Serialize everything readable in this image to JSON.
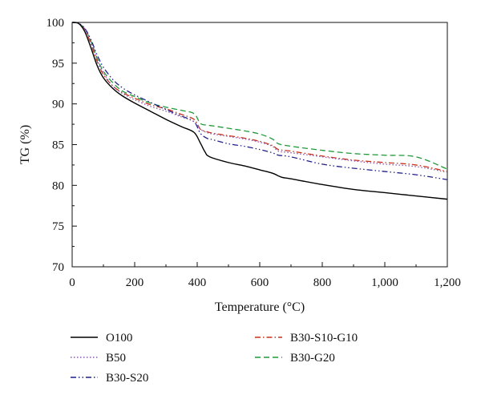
{
  "chart_data": {
    "type": "line",
    "title": "",
    "xlabel": "Temperature (°C)",
    "ylabel": "TG (%)",
    "xlim": [
      0,
      1200
    ],
    "ylim": [
      70,
      100
    ],
    "xticks": [
      0,
      200,
      400,
      600,
      800,
      1000,
      1200
    ],
    "xtick_labels": [
      "0",
      "200",
      "400",
      "600",
      "800",
      "1,000",
      "1,200"
    ],
    "yticks": [
      70,
      75,
      80,
      85,
      90,
      95,
      100
    ],
    "ytick_labels": [
      "70",
      "75",
      "80",
      "85",
      "90",
      "95",
      "100"
    ],
    "grid": false,
    "legend_position": "bottom",
    "series": [
      {
        "name": "O100",
        "color": "#000000",
        "dash": "solid",
        "x": [
          0,
          20,
          40,
          60,
          80,
          100,
          130,
          160,
          200,
          250,
          300,
          350,
          390,
          410,
          425,
          440,
          500,
          550,
          600,
          640,
          670,
          700,
          800,
          900,
          1000,
          1100,
          1200
        ],
        "y": [
          100,
          99.9,
          98.9,
          96.9,
          94.7,
          93.2,
          91.9,
          91.0,
          90.1,
          89.1,
          88.1,
          87.2,
          86.5,
          85.2,
          84.1,
          83.5,
          82.8,
          82.4,
          81.9,
          81.5,
          81.0,
          80.8,
          80.1,
          79.5,
          79.1,
          78.7,
          78.3
        ]
      },
      {
        "name": "B50",
        "color": "#8c5aa8",
        "dash": "dotted",
        "x": [
          0,
          20,
          40,
          60,
          80,
          100,
          130,
          160,
          200,
          250,
          300,
          350,
          390,
          410,
          430,
          450,
          500,
          550,
          600,
          640,
          660,
          700,
          800,
          900,
          1000,
          1100,
          1200
        ],
        "y": [
          100,
          99.9,
          99.2,
          97.6,
          95.4,
          93.8,
          92.2,
          91.3,
          90.5,
          89.7,
          89.1,
          88.4,
          87.8,
          86.9,
          86.5,
          86.3,
          86.0,
          85.7,
          85.3,
          84.8,
          84.2,
          84.0,
          83.5,
          83.0,
          82.6,
          82.3,
          81.6
        ]
      },
      {
        "name": "B30-S20",
        "color": "#1f1f8c",
        "dash": "dashdotdot",
        "x": [
          0,
          20,
          40,
          60,
          80,
          100,
          130,
          160,
          200,
          250,
          300,
          350,
          390,
          410,
          430,
          450,
          500,
          550,
          600,
          640,
          660,
          700,
          800,
          900,
          1000,
          1100,
          1200
        ],
        "y": [
          100,
          99.9,
          99.3,
          97.9,
          96.0,
          94.5,
          93.0,
          92.0,
          91.1,
          90.2,
          89.3,
          88.5,
          87.8,
          86.4,
          85.8,
          85.6,
          85.1,
          84.8,
          84.4,
          84.0,
          83.7,
          83.5,
          82.6,
          82.1,
          81.7,
          81.3,
          80.7
        ]
      },
      {
        "name": "B30-S10-G10",
        "color": "#c8331c",
        "dash": "dashdot",
        "x": [
          0,
          20,
          40,
          60,
          80,
          100,
          130,
          160,
          200,
          250,
          300,
          350,
          390,
          410,
          430,
          450,
          500,
          550,
          600,
          640,
          660,
          700,
          800,
          900,
          1000,
          1100,
          1200
        ],
        "y": [
          100,
          99.9,
          99.2,
          97.4,
          95.2,
          93.6,
          92.2,
          91.4,
          90.7,
          89.9,
          89.4,
          88.7,
          88.1,
          86.9,
          86.6,
          86.4,
          86.1,
          85.8,
          85.4,
          84.9,
          84.4,
          84.2,
          83.6,
          83.1,
          82.8,
          82.5,
          81.7
        ]
      },
      {
        "name": "B30-G20",
        "color": "#1f9a3a",
        "dash": "dashed",
        "x": [
          0,
          20,
          40,
          60,
          80,
          100,
          130,
          160,
          200,
          250,
          300,
          350,
          390,
          410,
          430,
          450,
          500,
          550,
          600,
          640,
          660,
          700,
          800,
          900,
          1000,
          1100,
          1200
        ],
        "y": [
          100,
          99.9,
          99.2,
          97.7,
          95.6,
          94.0,
          92.6,
          91.6,
          90.9,
          90.1,
          89.6,
          89.2,
          88.8,
          87.6,
          87.4,
          87.3,
          87.0,
          86.7,
          86.3,
          85.7,
          85.1,
          84.8,
          84.3,
          83.9,
          83.7,
          83.5,
          82.0
        ]
      }
    ]
  }
}
